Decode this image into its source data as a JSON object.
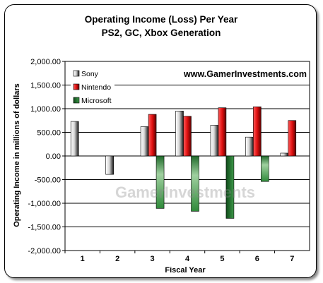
{
  "chart_data": {
    "type": "bar",
    "title": "Operating Income (Loss) Per Year",
    "subtitle": "PS2, GC, Xbox Generation",
    "xlabel": "Fiscal Year",
    "ylabel": "Operating Income in millions of dollars",
    "categories": [
      "1",
      "2",
      "3",
      "4",
      "5",
      "6",
      "7"
    ],
    "ylim": [
      -2000,
      2000
    ],
    "yticks": [
      "2,000.00",
      "1,500.00",
      "1,000.00",
      "500.00",
      "0.00",
      "-500.00",
      "-1,000.00",
      "-1,500.00",
      "-2,000.00"
    ],
    "ytick_values": [
      2000,
      1500,
      1000,
      500,
      0,
      -500,
      -1000,
      -1500,
      -2000
    ],
    "grid": true,
    "legend_position": "top-left",
    "annotation": "www.GamerInvestments.com",
    "watermark": "GamerInvestments",
    "series": [
      {
        "name": "Sony",
        "color": "#d9d9d9",
        "values": [
          730,
          -390,
          620,
          950,
          650,
          400,
          60
        ]
      },
      {
        "name": "Nintendo",
        "color": "#e01010",
        "values": [
          null,
          null,
          880,
          840,
          1020,
          1040,
          750
        ]
      },
      {
        "name": "Microsoft",
        "color": "#1f7a2e",
        "values": [
          null,
          null,
          -1110,
          -1170,
          -1320,
          -540,
          null
        ]
      }
    ]
  }
}
